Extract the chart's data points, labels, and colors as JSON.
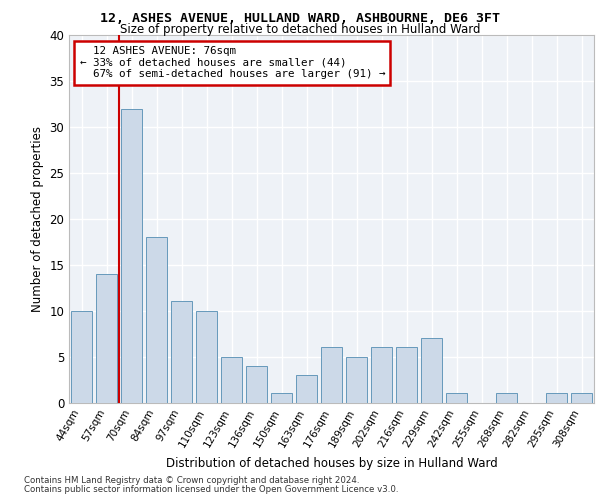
{
  "title1": "12, ASHES AVENUE, HULLAND WARD, ASHBOURNE, DE6 3FT",
  "title2": "Size of property relative to detached houses in Hulland Ward",
  "xlabel": "Distribution of detached houses by size in Hulland Ward",
  "ylabel": "Number of detached properties",
  "categories": [
    "44sqm",
    "57sqm",
    "70sqm",
    "84sqm",
    "97sqm",
    "110sqm",
    "123sqm",
    "136sqm",
    "150sqm",
    "163sqm",
    "176sqm",
    "189sqm",
    "202sqm",
    "216sqm",
    "229sqm",
    "242sqm",
    "255sqm",
    "268sqm",
    "282sqm",
    "295sqm",
    "308sqm"
  ],
  "values": [
    10,
    14,
    32,
    18,
    11,
    10,
    5,
    4,
    1,
    3,
    6,
    5,
    6,
    6,
    7,
    1,
    0,
    1,
    0,
    1,
    1
  ],
  "bar_color": "#ccd9e8",
  "bar_edge_color": "#6699bb",
  "highlight_index": 2,
  "highlight_line_color": "#cc0000",
  "annotation_text": "  12 ASHES AVENUE: 76sqm  \n← 33% of detached houses are smaller (44)\n  67% of semi-detached houses are larger (91) →",
  "annotation_box_color": "#cc0000",
  "ylim": [
    0,
    40
  ],
  "yticks": [
    0,
    5,
    10,
    15,
    20,
    25,
    30,
    35,
    40
  ],
  "background_color": "#eef2f7",
  "grid_color": "#ffffff",
  "footer_line1": "Contains HM Land Registry data © Crown copyright and database right 2024.",
  "footer_line2": "Contains public sector information licensed under the Open Government Licence v3.0."
}
